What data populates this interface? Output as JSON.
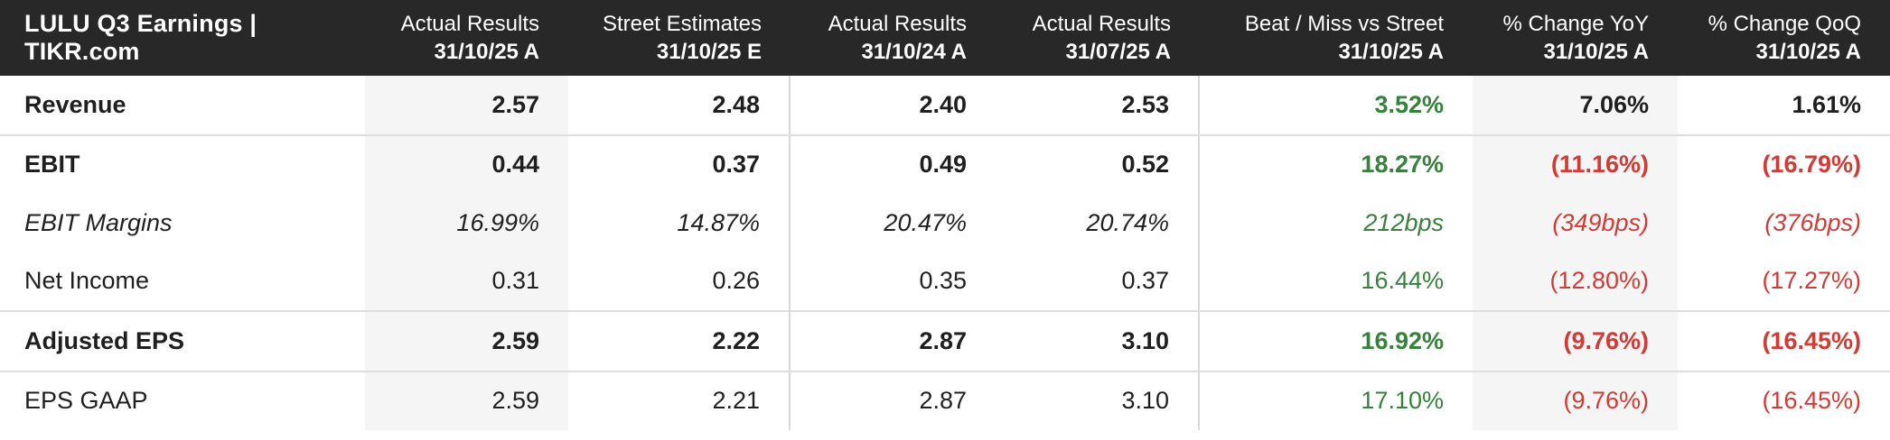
{
  "colors": {
    "positive": "#35823b",
    "negative": "#d23b34",
    "header_bg": "#282828",
    "header_text": "#ffffff",
    "body_text": "#1f1f1f",
    "shaded_col_bg": "#f5f5f5"
  },
  "chart_data": {
    "type": "table",
    "title": "LULU Q3 Earnings | TIKR.com",
    "columns": [
      {
        "label": "Actual Results",
        "date": "31/10/25 A"
      },
      {
        "label": "Street Estimates",
        "date": "31/10/25 E"
      },
      {
        "label": "Actual Results",
        "date": "31/10/24 A"
      },
      {
        "label": "Actual Results",
        "date": "31/07/25 A"
      },
      {
        "label": "Beat / Miss vs Street",
        "date": "31/10/25 A"
      },
      {
        "label": "% Change YoY",
        "date": "31/10/25 A"
      },
      {
        "label": "% Change QoQ",
        "date": "31/10/25 A"
      }
    ],
    "rows": [
      {
        "label": "Revenue",
        "style": "bold",
        "divider_below": true,
        "values": [
          "2.57",
          "2.48",
          "2.40",
          "2.53",
          "3.52%",
          "7.06%",
          "1.61%"
        ],
        "value_colors": [
          "dark",
          "dark",
          "dark",
          "dark",
          "pos",
          "dark",
          "dark"
        ]
      },
      {
        "label": "EBIT",
        "style": "bold",
        "divider_below": false,
        "values": [
          "0.44",
          "0.37",
          "0.49",
          "0.52",
          "18.27%",
          "(11.16%)",
          "(16.79%)"
        ],
        "value_colors": [
          "dark",
          "dark",
          "dark",
          "dark",
          "pos",
          "neg",
          "neg"
        ]
      },
      {
        "label": "EBIT Margins",
        "style": "italic",
        "divider_below": false,
        "values": [
          "16.99%",
          "14.87%",
          "20.47%",
          "20.74%",
          "212bps",
          "(349bps)",
          "(376bps)"
        ],
        "value_colors": [
          "dark",
          "dark",
          "dark",
          "dark",
          "pos",
          "neg",
          "neg"
        ]
      },
      {
        "label": "Net Income",
        "style": "regular",
        "divider_below": true,
        "values": [
          "0.31",
          "0.26",
          "0.35",
          "0.37",
          "16.44%",
          "(12.80%)",
          "(17.27%)"
        ],
        "value_colors": [
          "dark",
          "dark",
          "dark",
          "dark",
          "pos",
          "neg",
          "neg"
        ]
      },
      {
        "label": "Adjusted EPS",
        "style": "bold",
        "divider_below": true,
        "values": [
          "2.59",
          "2.22",
          "2.87",
          "3.10",
          "16.92%",
          "(9.76%)",
          "(16.45%)"
        ],
        "value_colors": [
          "dark",
          "dark",
          "dark",
          "dark",
          "pos",
          "neg",
          "neg"
        ]
      },
      {
        "label": "EPS GAAP",
        "style": "regular",
        "divider_below": false,
        "values": [
          "2.59",
          "2.21",
          "2.87",
          "3.10",
          "17.10%",
          "(9.76%)",
          "(16.45%)"
        ],
        "value_colors": [
          "dark",
          "dark",
          "dark",
          "dark",
          "pos",
          "neg",
          "neg"
        ]
      }
    ]
  }
}
